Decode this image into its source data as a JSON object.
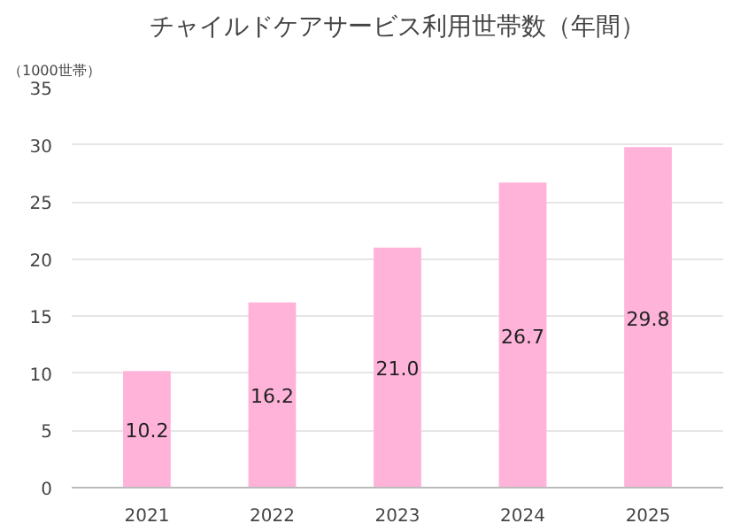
{
  "chart_data": {
    "type": "bar",
    "title": "チャイルドケアサービス利用世帯数（年間）",
    "ylabel": "（1000世帯）",
    "categories": [
      "2021",
      "2022",
      "2023",
      "2024",
      "2025"
    ],
    "values": [
      10.2,
      16.2,
      21.0,
      26.7,
      29.8
    ],
    "value_labels": [
      "10.2",
      "16.2",
      "21.0",
      "26.7",
      "29.8"
    ],
    "color": "#ffb3d9",
    "ylim": [
      0,
      35
    ],
    "yticks": [
      0,
      5,
      10,
      15,
      20,
      25,
      30,
      35
    ],
    "grid": "y"
  }
}
